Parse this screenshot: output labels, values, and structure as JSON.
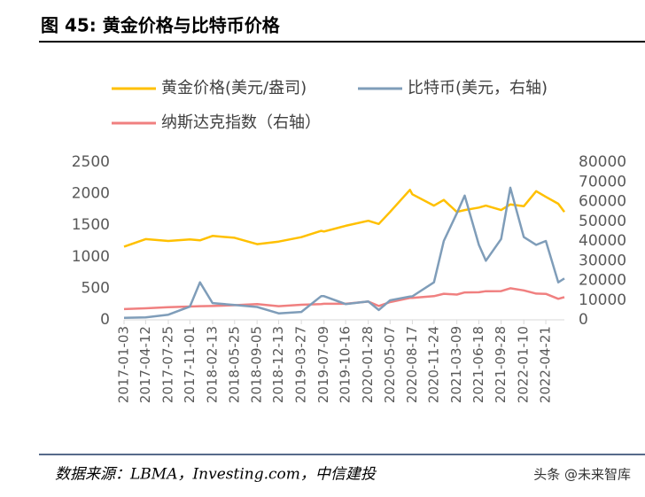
{
  "chart_data": {
    "type": "line",
    "title": "图 45: 黄金价格与比特币价格",
    "source": "数据来源：LBMA，Investing.com，中信建投",
    "watermark": "头条 @未来智库",
    "x": [
      "2017-01-03",
      "2017-04-12",
      "2017-07-25",
      "2017-11-01",
      "2017-12-17",
      "2018-02-13",
      "2018-05-25",
      "2018-09-05",
      "2018-12-13",
      "2019-03-27",
      "2019-06-26",
      "2019-07-09",
      "2019-10-16",
      "2020-01-28",
      "2020-03-16",
      "2020-05-07",
      "2020-08-06",
      "2020-08-17",
      "2020-11-24",
      "2021-01-08",
      "2021-03-09",
      "2021-04-14",
      "2021-06-18",
      "2021-07-20",
      "2021-09-28",
      "2021-11-09",
      "2022-01-10",
      "2022-03-08",
      "2022-04-21",
      "2022-06-17",
      "2022-07-15"
    ],
    "xlim": [
      "2017-01-03",
      "2022-07-15"
    ],
    "xticks": [
      "2017-01-03",
      "2017-04-12",
      "2017-07-25",
      "2017-11-01",
      "2018-02-13",
      "2018-05-25",
      "2018-09-05",
      "2018-12-13",
      "2019-03-27",
      "2019-07-09",
      "2019-10-16",
      "2020-01-28",
      "2020-05-07",
      "2020-08-17",
      "2020-11-24",
      "2021-03-09",
      "2021-06-18",
      "2021-09-28",
      "2022-01-10",
      "2022-04-21"
    ],
    "ylim": [
      0,
      2500
    ],
    "yticks": [
      0,
      500,
      1000,
      1500,
      2000,
      2500
    ],
    "y2lim": [
      0,
      80000
    ],
    "y2ticks": [
      0,
      10000,
      20000,
      30000,
      40000,
      50000,
      60000,
      70000,
      80000
    ],
    "series": [
      {
        "name": "黄金价格(美元/盎司)",
        "color": "#FFC000",
        "values": [
          1160,
          1280,
          1250,
          1275,
          1260,
          1330,
          1300,
          1200,
          1240,
          1310,
          1410,
          1400,
          1490,
          1570,
          1520,
          1710,
          2060,
          1990,
          1810,
          1900,
          1710,
          1740,
          1780,
          1810,
          1740,
          1830,
          1800,
          2040,
          1950,
          1840,
          1710
        ]
      },
      {
        "name": "比特币(美元，右轴)",
        "color": "#7F9DB9",
        "axis": "y2",
        "values": [
          1000,
          1200,
          2600,
          6700,
          19000,
          8500,
          7500,
          6500,
          3300,
          4000,
          12000,
          12000,
          8000,
          9300,
          5000,
          9900,
          11800,
          11900,
          19000,
          40000,
          54000,
          63000,
          38000,
          30000,
          41000,
          67000,
          42000,
          38000,
          40000,
          19000,
          21000
        ]
      },
      {
        "name": "纳斯达克指数（右轴）",
        "color": "#F08080",
        "axis": "y2",
        "values": [
          5430,
          5860,
          6400,
          6720,
          6940,
          7000,
          7430,
          8000,
          6900,
          7640,
          8000,
          8140,
          8120,
          9270,
          7000,
          8980,
          11100,
          11130,
          12000,
          13200,
          12800,
          13900,
          14000,
          14500,
          14550,
          16000,
          14900,
          13300,
          13170,
          10650,
          11500
        ]
      }
    ]
  }
}
